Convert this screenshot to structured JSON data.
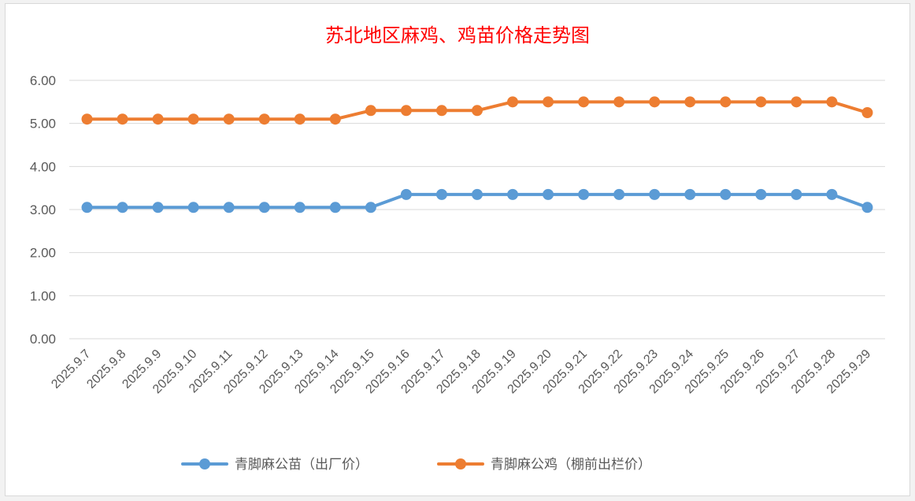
{
  "chart_data": {
    "type": "line",
    "title": "苏北地区麻鸡、鸡苗价格走势图",
    "categories": [
      "2025.9.7",
      "2025.9.8",
      "2025.9.9",
      "2025.9.10",
      "2025.9.11",
      "2025.9.12",
      "2025.9.13",
      "2025.9.14",
      "2025.9.15",
      "2025.9.16",
      "2025.9.17",
      "2025.9.18",
      "2025.9.19",
      "2025.9.20",
      "2025.9.21",
      "2025.9.22",
      "2025.9.23",
      "2025.9.24",
      "2025.9.25",
      "2025.9.26",
      "2025.9.27",
      "2025.9.28",
      "2025.9.29"
    ],
    "series": [
      {
        "name": "青脚麻公苗（出厂价）",
        "color": "#5b9bd5",
        "values": [
          3.05,
          3.05,
          3.05,
          3.05,
          3.05,
          3.05,
          3.05,
          3.05,
          3.05,
          3.35,
          3.35,
          3.35,
          3.35,
          3.35,
          3.35,
          3.35,
          3.35,
          3.35,
          3.35,
          3.35,
          3.35,
          3.35,
          3.05
        ]
      },
      {
        "name": "青脚麻公鸡（棚前出栏价）",
        "color": "#ed7d31",
        "values": [
          5.1,
          5.1,
          5.1,
          5.1,
          5.1,
          5.1,
          5.1,
          5.1,
          5.3,
          5.3,
          5.3,
          5.3,
          5.5,
          5.5,
          5.5,
          5.5,
          5.5,
          5.5,
          5.5,
          5.5,
          5.5,
          5.5,
          5.25
        ]
      }
    ],
    "yticks": [
      "0.00",
      "1.00",
      "2.00",
      "3.00",
      "4.00",
      "5.00",
      "6.00"
    ],
    "ylim": [
      0,
      6
    ],
    "xlabel": "",
    "ylabel": "",
    "grid": true,
    "legend_position": "bottom"
  }
}
